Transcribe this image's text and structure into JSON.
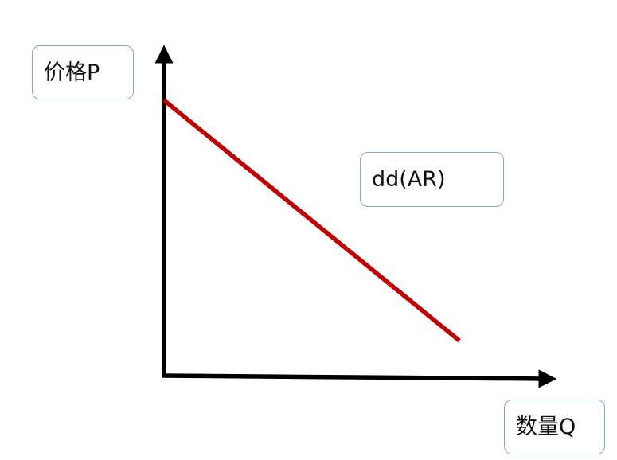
{
  "labels": {
    "price_axis": "价格P",
    "demand_curve": "dd(AR)",
    "quantity_axis": "数量Q"
  },
  "colors": {
    "axis": "#000000",
    "demand_curve": "#c00000",
    "box_border": "#7fa7cf"
  },
  "curve": {
    "type": "downward-sloping line"
  }
}
